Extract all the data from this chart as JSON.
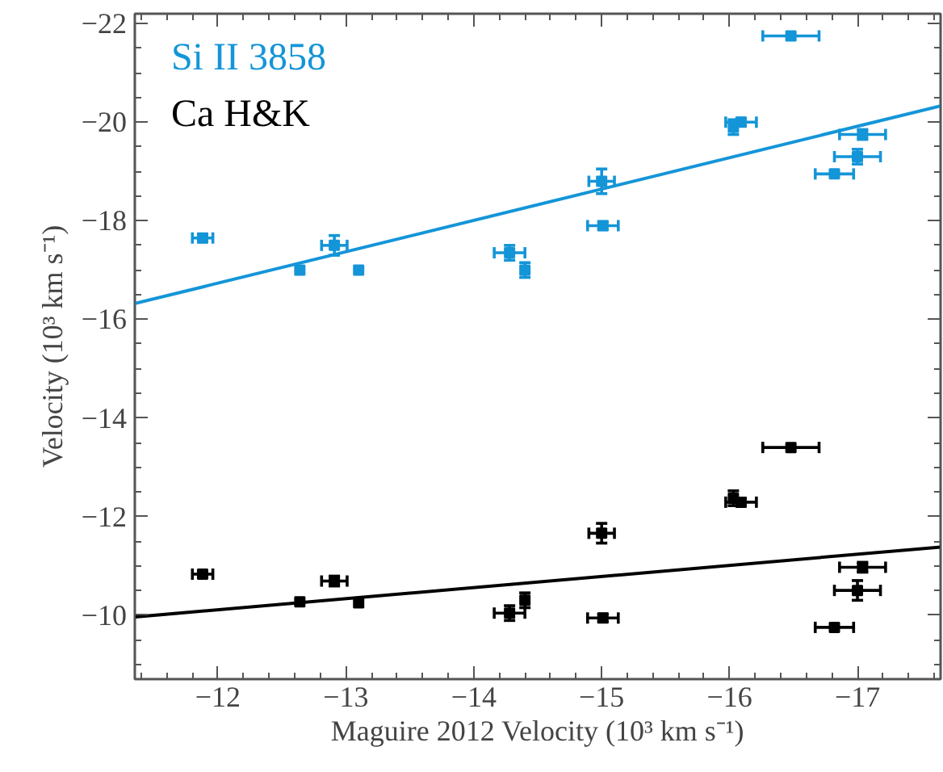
{
  "chart_data": {
    "type": "scatter",
    "xlabel": "Maguire 2012 Velocity (10³ km s⁻¹)",
    "ylabel": "Velocity (10³ km s⁻¹)",
    "xlim": [
      -11.35,
      -17.65
    ],
    "ylim": [
      -8.7,
      -22.2
    ],
    "xticks": [
      -12,
      -13,
      -14,
      -15,
      -16,
      -17
    ],
    "yticks": [
      -10,
      -12,
      -14,
      -16,
      -18,
      -20,
      -22
    ],
    "grid": false,
    "legend": "top left",
    "marker": "square",
    "series": [
      {
        "name": "Si II 3858",
        "color": "#1495d8",
        "x": [
          -11.88,
          -12.64,
          -12.91,
          -13.1,
          -14.28,
          -14.4,
          -15.0,
          -15.01,
          -16.03,
          -16.09,
          -16.48,
          -16.82,
          -17.0,
          -17.04
        ],
        "values": [
          -17.65,
          -17.0,
          -17.5,
          -17.0,
          -17.35,
          -17.0,
          -18.8,
          -17.9,
          -19.9,
          -20.0,
          -21.75,
          -18.95,
          -19.3,
          -19.75
        ],
        "xerrors": [
          0.08,
          null,
          0.1,
          null,
          0.12,
          null,
          0.1,
          0.12,
          null,
          0.12,
          0.22,
          0.15,
          0.18,
          0.18
        ],
        "errors": [
          0.08,
          null,
          0.2,
          null,
          0.15,
          0.15,
          0.25,
          0.08,
          0.15,
          0.08,
          null,
          null,
          0.15,
          0.1
        ]
      },
      {
        "name": "Ca H&K",
        "color": "#000000",
        "x": [
          -11.88,
          -12.64,
          -12.91,
          -13.1,
          -14.28,
          -14.4,
          -15.0,
          -15.01,
          -16.03,
          -16.09,
          -16.48,
          -16.82,
          -17.0,
          -17.04
        ],
        "values": [
          -10.83,
          -10.27,
          -10.69,
          -10.25,
          -10.04,
          -10.3,
          -11.66,
          -9.94,
          -12.37,
          -12.29,
          -13.4,
          -9.75,
          -10.5,
          -10.97
        ],
        "xerrors": [
          0.08,
          null,
          0.1,
          null,
          0.12,
          null,
          0.1,
          0.12,
          null,
          0.12,
          0.22,
          0.15,
          0.18,
          0.18
        ],
        "errors": [
          0.05,
          null,
          0.1,
          null,
          0.15,
          0.15,
          0.2,
          0.08,
          0.15,
          0.08,
          null,
          null,
          0.2,
          0.1
        ]
      },
      {
        "type": "line",
        "marker": "none",
        "color": "#1495d8",
        "x": [
          -11.35,
          -17.65
        ],
        "values": [
          -16.32,
          -20.33
        ]
      },
      {
        "type": "line",
        "marker": "none",
        "color": "#000000",
        "x": [
          -11.35,
          -17.65
        ],
        "values": [
          -9.96,
          -11.38
        ]
      }
    ]
  }
}
